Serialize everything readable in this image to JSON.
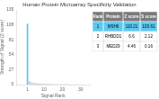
{
  "chart_data": {
    "type": "bar",
    "title": "Human Protein Microarray Specificity Validation",
    "xlabel": "Signal Rank",
    "ylabel": "Strength of Signal (Z score)",
    "x": [
      1,
      2,
      3,
      4,
      5,
      6,
      7,
      8,
      9,
      10,
      11,
      12,
      13,
      14,
      15,
      16,
      17,
      18,
      19,
      20,
      21,
      22,
      23,
      24,
      25,
      26,
      27,
      28,
      29,
      30
    ],
    "values": [
      110.21,
      6.6,
      4.46,
      3.2,
      2.8,
      2.5,
      2.2,
      2.0,
      1.8,
      1.6,
      1.5,
      1.4,
      1.3,
      1.2,
      1.1,
      1.0,
      0.95,
      0.9,
      0.85,
      0.8,
      0.75,
      0.7,
      0.65,
      0.6,
      0.55,
      0.5,
      0.45,
      0.4,
      0.35,
      0.3
    ],
    "colors": [
      "#5bc8f0",
      "#d0d0d0",
      "#d0d0d0",
      "#d0d0d0",
      "#d0d0d0",
      "#d0d0d0",
      "#d0d0d0",
      "#d0d0d0",
      "#d0d0d0",
      "#d0d0d0",
      "#d0d0d0",
      "#d0d0d0",
      "#d0d0d0",
      "#d0d0d0",
      "#d0d0d0",
      "#d0d0d0",
      "#d0d0d0",
      "#d0d0d0",
      "#d0d0d0",
      "#d0d0d0",
      "#d0d0d0",
      "#d0d0d0",
      "#d0d0d0",
      "#d0d0d0",
      "#d0d0d0",
      "#d0d0d0",
      "#d0d0d0",
      "#d0d0d0",
      "#d0d0d0",
      "#d0d0d0"
    ],
    "xlim": [
      0,
      30
    ],
    "xticks": [
      1,
      10,
      20,
      30
    ],
    "ylim": [
      0,
      135
    ],
    "yticks": [
      0,
      27,
      54,
      81,
      108,
      135
    ],
    "grid": false,
    "table": {
      "columns": [
        "Rank",
        "Protein",
        "Z score",
        "S score"
      ],
      "rows": [
        [
          "1",
          "MSH6",
          "110.21",
          "103.61"
        ],
        [
          "2",
          "RHBDD1",
          "6.6",
          "2.12"
        ],
        [
          "3",
          "MED29",
          "4.46",
          "0.16"
        ]
      ]
    }
  }
}
